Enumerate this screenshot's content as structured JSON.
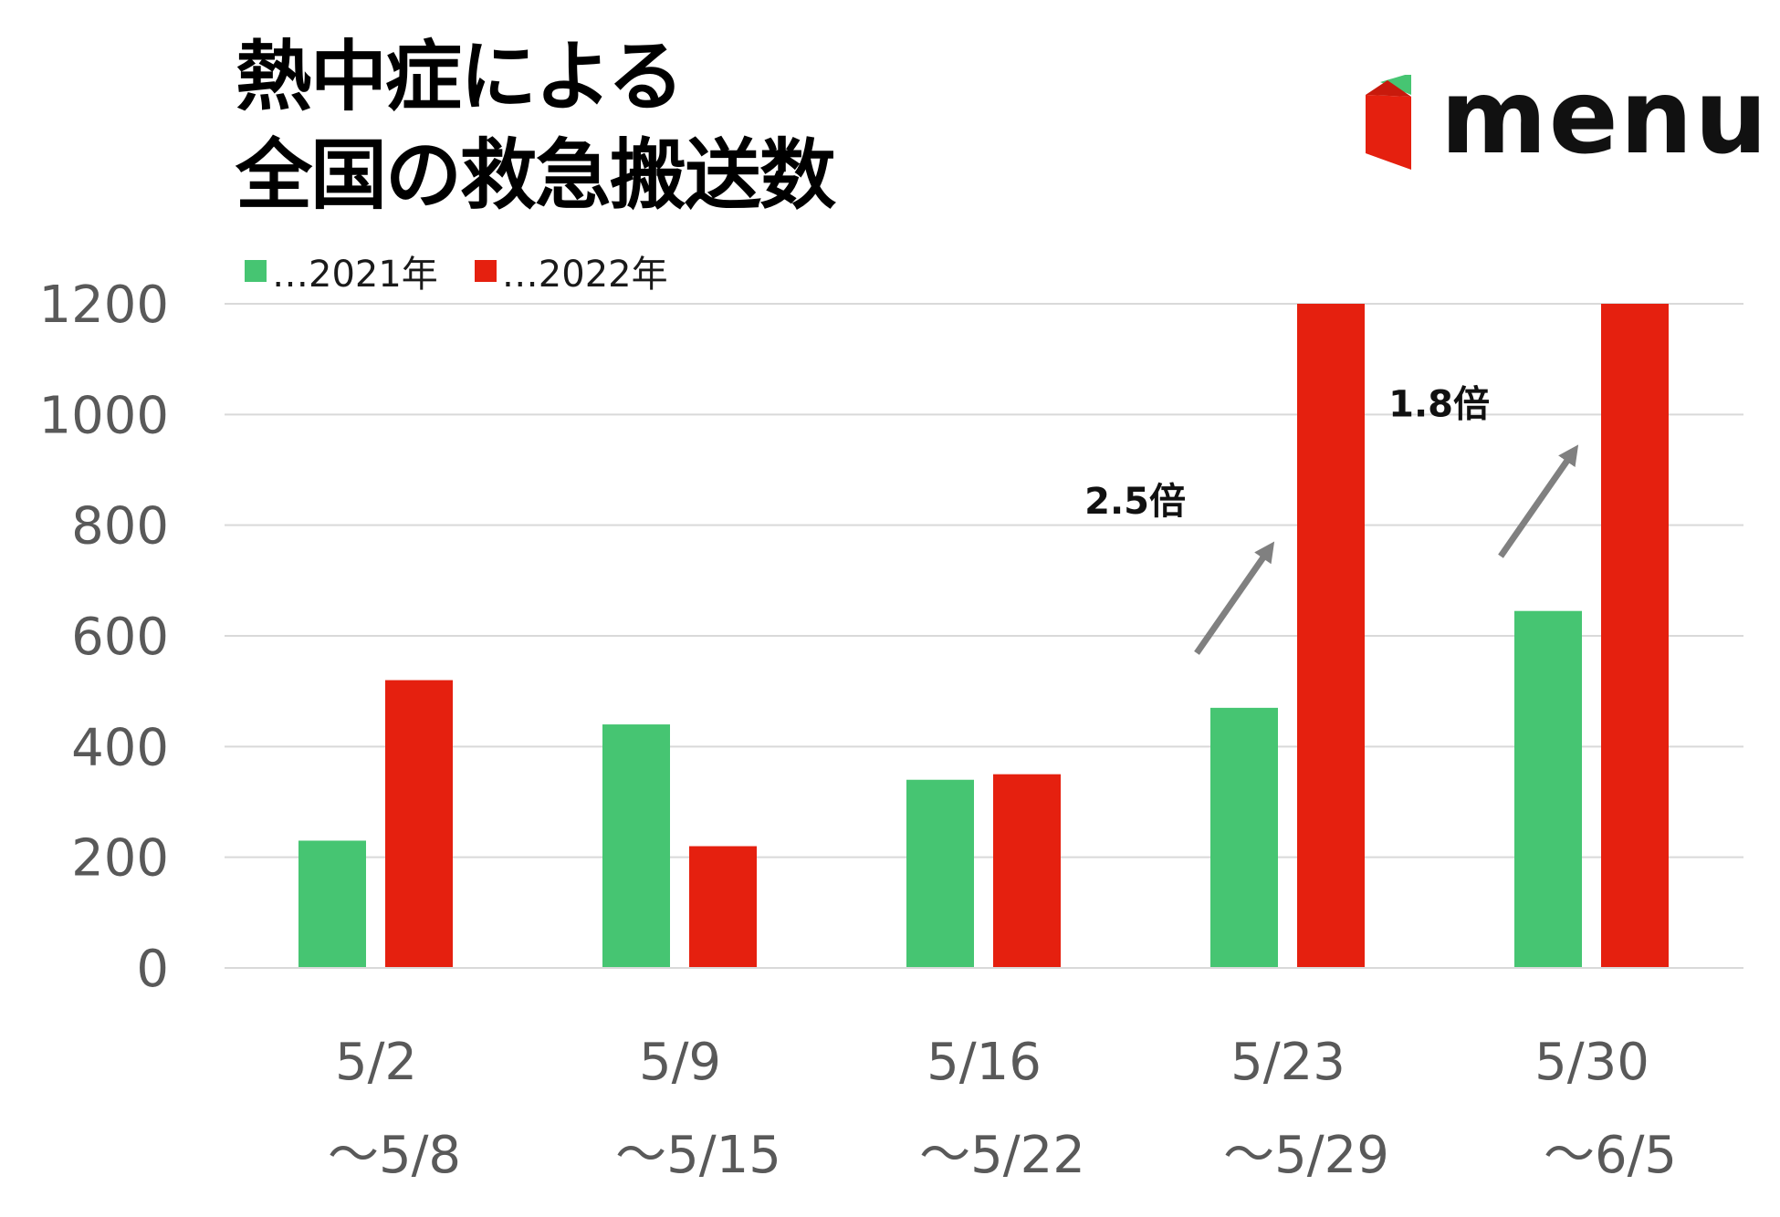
{
  "title": {
    "line1": "熱中症による",
    "line2": "全国の救急搬送数"
  },
  "logo": {
    "text": "menu",
    "icon": "menu-brand-icon"
  },
  "chart_data": {
    "type": "bar",
    "categories": [
      [
        "5/2",
        "～5/8"
      ],
      [
        "5/9",
        "～5/15"
      ],
      [
        "5/16",
        "～5/22"
      ],
      [
        "5/23",
        "～5/29"
      ],
      [
        "5/30",
        "～6/5"
      ]
    ],
    "series": [
      {
        "name": "…2021年",
        "color": "#46c572",
        "values": [
          230,
          440,
          340,
          470,
          645
        ]
      },
      {
        "name": "…2022年",
        "color": "#e5200f",
        "values": [
          520,
          220,
          350,
          1200,
          1200
        ]
      }
    ],
    "ylim": [
      0,
      1200
    ],
    "yticks": [
      0,
      200,
      400,
      600,
      800,
      1000,
      1200
    ],
    "grid": true,
    "legend": "top-left",
    "annotations": [
      {
        "text": "2.5倍",
        "category_index": 3
      },
      {
        "text": "1.8倍",
        "category_index": 4
      }
    ]
  },
  "colors": {
    "green": "#46c572",
    "red": "#e5200f",
    "grid": "#d9d9d9",
    "axis_text": "#595959",
    "arrow": "#808080"
  }
}
